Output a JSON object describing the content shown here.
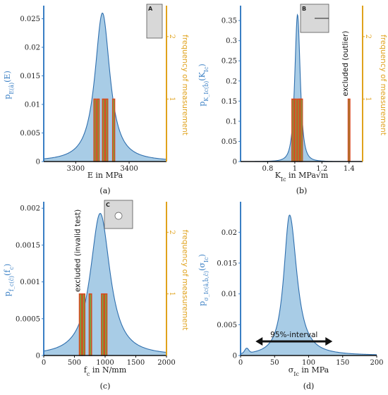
{
  "chart_data": [
    {
      "id": "a",
      "type": "area",
      "panel_label": "(a)",
      "xlabel": "E in MPa",
      "ylabel": "p_E(â)(E)",
      "right_label": "frequency of measurement",
      "xlim": [
        3240,
        3470
      ],
      "ylim": [
        0,
        0.0268
      ],
      "right_lim": [
        0,
        2.45
      ],
      "xticks": [
        3300,
        3400
      ],
      "yticks": [
        0,
        0.005,
        0.01,
        0.015,
        0.02,
        0.025
      ],
      "right_ticks": [
        1,
        2
      ],
      "pdf": {
        "type": "peak",
        "mu": 3350,
        "scale": 18,
        "peak": 0.026,
        "power": 1.1
      },
      "bars": {
        "values": [
          1,
          1,
          1,
          1,
          1
        ],
        "centers": [
          3336,
          3342,
          3352,
          3358,
          3371
        ],
        "width": 4
      },
      "inset": {
        "label": "A",
        "shape": "blank"
      }
    },
    {
      "id": "b",
      "type": "area",
      "panel_label": "(b)",
      "xlabel": "K_Ic in MPa√m",
      "ylabel": "p_K_Ic(b̂)(K_Ic)",
      "right_label": "frequency of measurement",
      "xlim": [
        0.6,
        1.5
      ],
      "ylim": [
        0,
        0.38
      ],
      "right_lim": [
        0,
        2.45
      ],
      "xticks": [
        0.8,
        1.0,
        1.2,
        1.4
      ],
      "yticks": [
        0,
        0.05,
        0.1,
        0.15,
        0.2,
        0.25,
        0.3,
        0.35
      ],
      "right_ticks": [
        1,
        2
      ],
      "pdf": {
        "type": "peak",
        "mu": 1.02,
        "scale": 0.032,
        "peak": 0.365,
        "power": 1.6
      },
      "bars": {
        "values": [
          1,
          1,
          1,
          1,
          1
        ],
        "centers": [
          0.985,
          1.005,
          1.025,
          1.04,
          1.05
        ],
        "width": 0.013
      },
      "outlier": {
        "center": 1.4,
        "value": 1,
        "width": 0.013,
        "note": "excluded (outlier)"
      },
      "inset": {
        "label": "B",
        "shape": "crack"
      }
    },
    {
      "id": "c",
      "type": "area",
      "panel_label": "(c)",
      "xlabel": "f_c in N/mm",
      "ylabel": "p_f_c(ĉ)(f_c)",
      "right_label": "frequency of measurement",
      "xlim": [
        0,
        2000
      ],
      "ylim": [
        0,
        0.00205
      ],
      "right_lim": [
        0,
        2.45
      ],
      "xticks": [
        0,
        500,
        1000,
        1500,
        2000
      ],
      "yticks": [
        0,
        0.0005,
        0.001,
        0.0015,
        0.002
      ],
      "right_ticks": [
        1,
        2
      ],
      "pdf": {
        "type": "peak",
        "mu": 920,
        "scale": 210,
        "peak": 0.00193,
        "power": 1.15
      },
      "bars": {
        "values": [
          1,
          1,
          1,
          1,
          1
        ],
        "centers": [
          600,
          650,
          760,
          960,
          1010
        ],
        "width": 40
      },
      "invalid": {
        "center": 580,
        "note": "excluded (invalid test)"
      },
      "inset": {
        "label": "C",
        "shape": "hole"
      }
    },
    {
      "id": "d",
      "type": "area",
      "panel_label": "(d)",
      "xlabel": "σ_Ic in MPa",
      "ylabel": "p_σ_Ic(â,b̂,ĉ)(σ_Ic)",
      "xlim": [
        0,
        200
      ],
      "ylim": [
        0,
        0.0245
      ],
      "xticks": [
        0,
        50,
        100,
        150,
        200
      ],
      "yticks": [
        0,
        0.005,
        0.01,
        0.015,
        0.02
      ],
      "pdf": {
        "type": "skew",
        "mu": 72,
        "scale_left": 11,
        "scale_right": 14,
        "peak": 0.0228,
        "power": 1.15,
        "bump_x": 9,
        "bump_y": 0.0008
      },
      "interval": {
        "from": 22,
        "to": 135,
        "label": "95%-interval"
      }
    }
  ],
  "colors": {
    "axis": "#3a7fc4",
    "fill": "#a8cce6",
    "curve": "#2f6fae",
    "orange": "#e0a21c",
    "bar_fill": "#8a9a3a",
    "bar_inner": "#6aa84f",
    "bar_edge": "#d9471f"
  }
}
